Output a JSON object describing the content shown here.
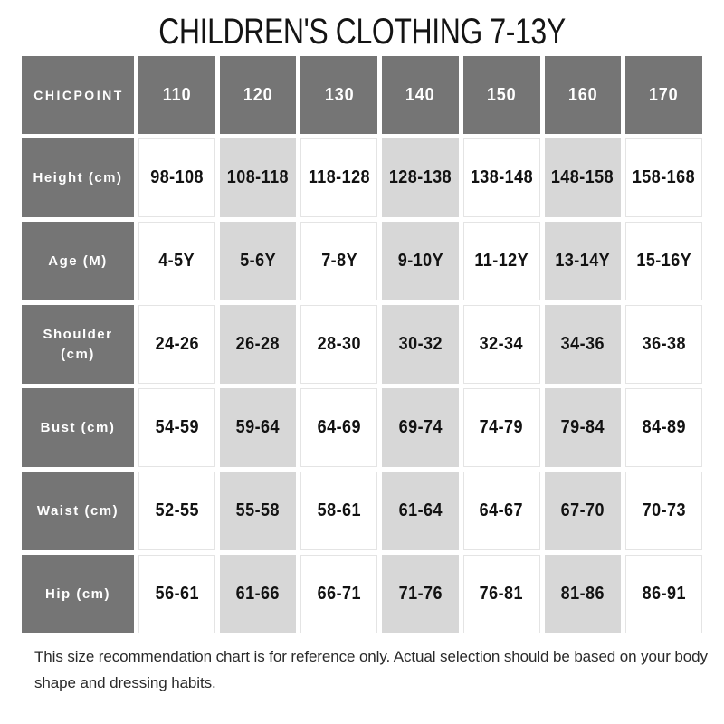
{
  "chart_data": {
    "type": "table",
    "title": "CHILDREN'S CLOTHING 7-13Y",
    "columns": [
      "CHICPOINT",
      "110",
      "120",
      "130",
      "140",
      "150",
      "160",
      "170"
    ],
    "rows": [
      {
        "label": "Height (cm)",
        "values": [
          "98-108",
          "108-118",
          "118-128",
          "128-138",
          "138-148",
          "148-158",
          "158-168"
        ]
      },
      {
        "label": "Age (M)",
        "values": [
          "4-5Y",
          "5-6Y",
          "7-8Y",
          "9-10Y",
          "11-12Y",
          "13-14Y",
          "15-16Y"
        ]
      },
      {
        "label": "Shoulder\n(cm)",
        "values": [
          "24-26",
          "26-28",
          "28-30",
          "30-32",
          "32-34",
          "34-36",
          "36-38"
        ]
      },
      {
        "label": "Bust (cm)",
        "values": [
          "54-59",
          "59-64",
          "64-69",
          "69-74",
          "74-79",
          "79-84",
          "84-89"
        ]
      },
      {
        "label": "Waist (cm)",
        "values": [
          "52-55",
          "55-58",
          "58-61",
          "61-64",
          "64-67",
          "67-70",
          "70-73"
        ]
      },
      {
        "label": "Hip (cm)",
        "values": [
          "56-61",
          "61-66",
          "66-71",
          "71-76",
          "76-81",
          "81-86",
          "86-91"
        ]
      }
    ],
    "layout": {
      "striped_columns": [
        "120",
        "140",
        "160"
      ],
      "legend": "none",
      "grid": "separated-cells"
    }
  },
  "colors": {
    "header_bg": "#757575",
    "stripe_bg": "#d7d7d7",
    "cell_border": "#e4e4e4",
    "text": "#121212"
  },
  "footer": {
    "note": "This size recommendation chart is for reference only. Actual selection should be based on your body shape and dressing habits."
  }
}
